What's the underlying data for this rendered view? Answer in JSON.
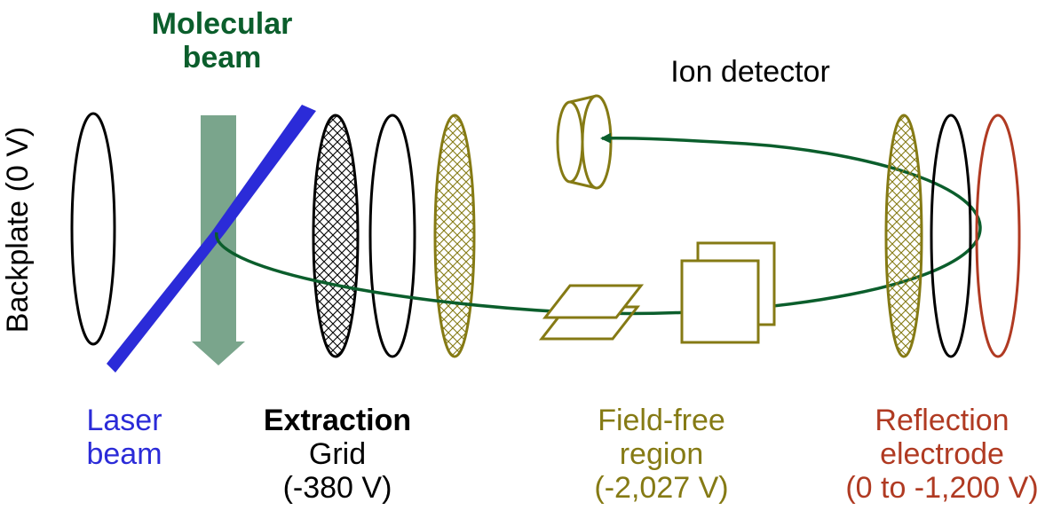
{
  "colors": {
    "black": "#000000",
    "green": "#0b5e2c",
    "blue": "#2b2bd8",
    "olive": "#857a14",
    "red": "#b03a22",
    "arrow_fill": "#7aa58c"
  },
  "labels": {
    "molecular_beam": [
      "Molecular",
      "beam"
    ],
    "ion_detector": "Ion detector",
    "backplate": "Backplate (0 V)",
    "laser_beam": [
      "Laser",
      "beam"
    ],
    "extraction_grid": [
      "Extraction",
      "Grid",
      "(-380 V)"
    ],
    "field_free": [
      "Field-free",
      "region",
      "(-2,027 V)"
    ],
    "reflection": [
      "Reflection",
      "electrode",
      "(0 to -1,200 V)"
    ]
  }
}
